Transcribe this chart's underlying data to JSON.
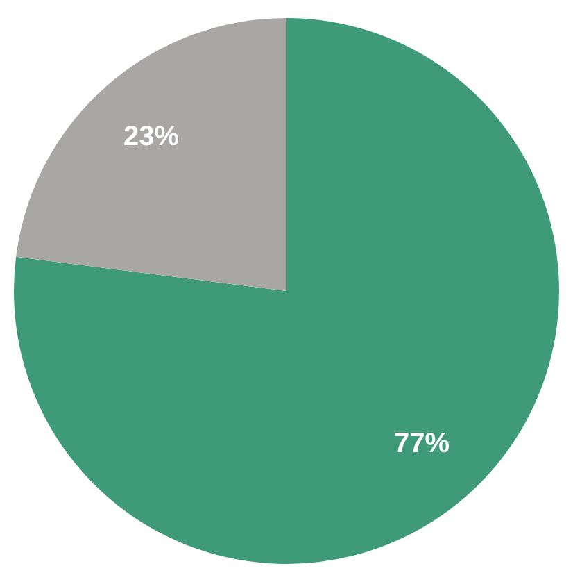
{
  "chart_data": {
    "type": "pie",
    "categories": [
      null,
      null
    ],
    "values": [
      77,
      23
    ],
    "colors": [
      "#3f9a7a",
      "#a9a6a6"
    ],
    "value_labels": [
      "77%",
      "23%"
    ]
  }
}
